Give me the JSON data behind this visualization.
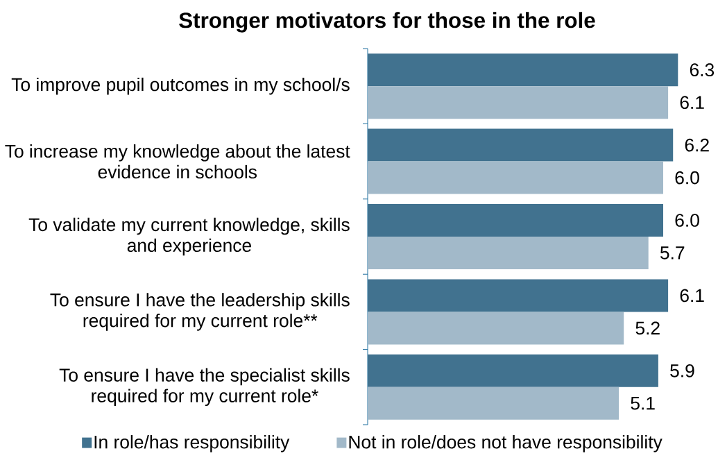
{
  "chart_data": {
    "type": "bar",
    "orientation": "horizontal",
    "title": "Stronger motivators for those in the role",
    "categories": [
      "To improve pupil outcomes in my school/s",
      "To increase my knowledge about the latest evidence in schools",
      "To validate my current knowledge, skills and experience",
      "To ensure I have the leadership skills required for my current role**",
      "To ensure I have the specialist skills required for my current role*"
    ],
    "series": [
      {
        "name": "In role/has responsibility",
        "color": "#41728f",
        "values": [
          6.3,
          6.2,
          6.0,
          6.1,
          5.9
        ],
        "value_labels": [
          "6.3",
          "6.2",
          "6.0",
          "6.1",
          "5.9"
        ]
      },
      {
        "name": "Not in role/does not have responsibility",
        "color": "#a2b9c9",
        "values": [
          6.1,
          6.0,
          5.7,
          5.2,
          5.1
        ],
        "value_labels": [
          "6.1",
          "6.0",
          "5.7",
          "5.2",
          "5.1"
        ]
      }
    ],
    "legend": "bottom"
  }
}
